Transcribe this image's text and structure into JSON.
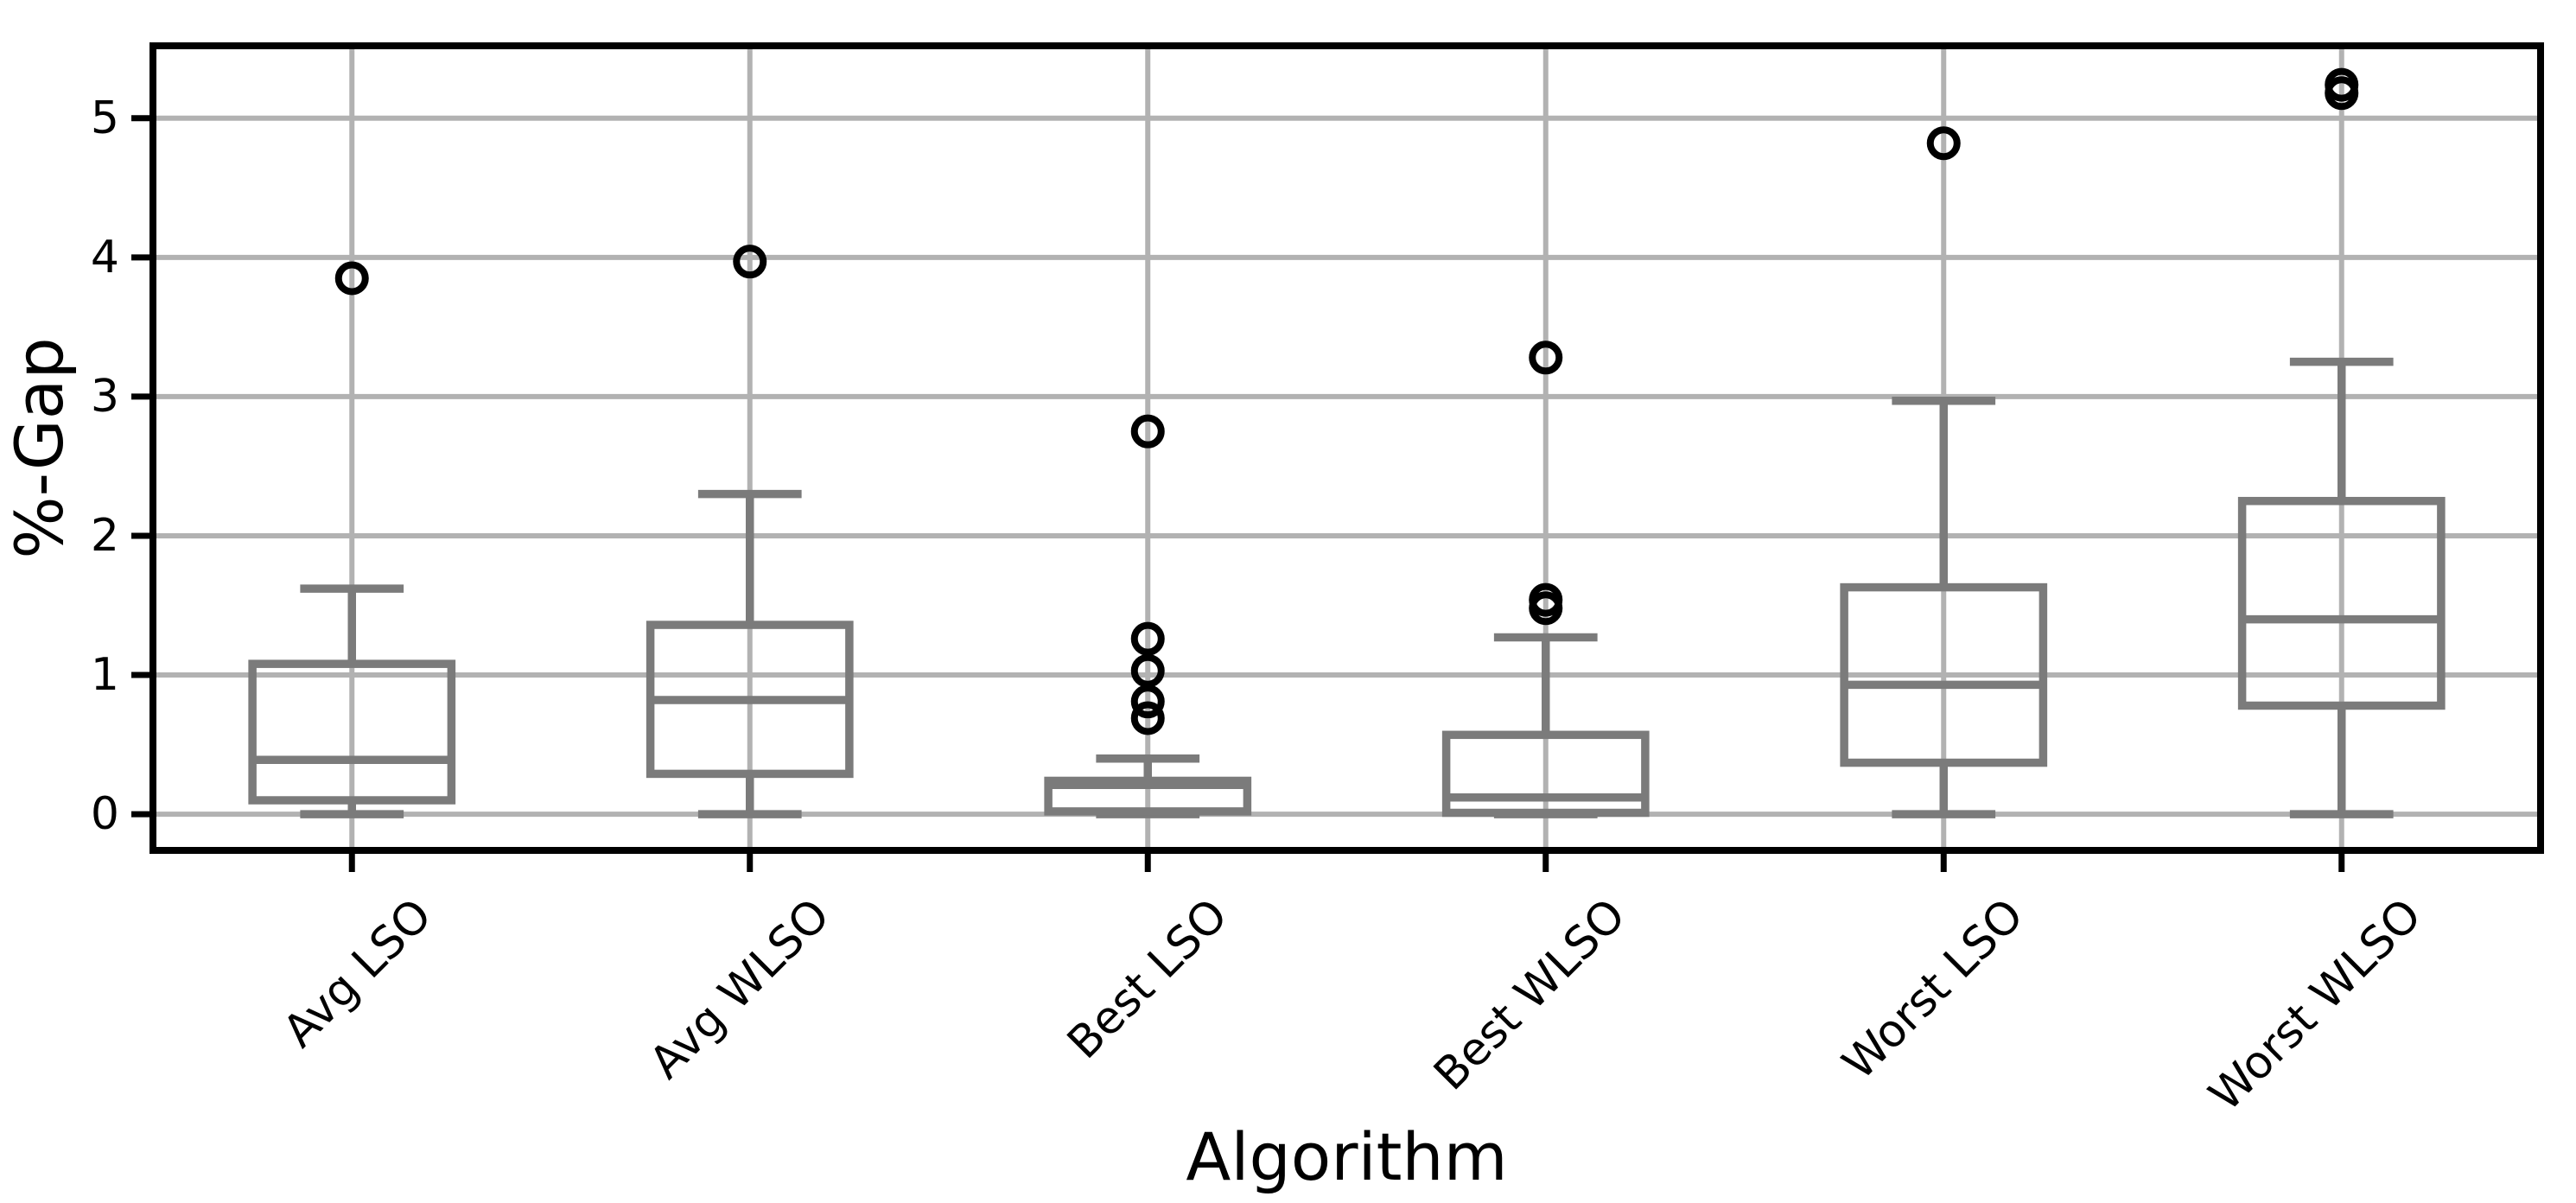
{
  "figure": {
    "description": "Box plot of percentage gap per algorithm variant",
    "background": "#ffffff"
  },
  "chart_data": {
    "type": "box",
    "title": "",
    "xlabel": "Algorithm",
    "ylabel": "%-Gap",
    "categories": [
      "Avg LSO",
      "Avg WLSO",
      "Best LSO",
      "Best WLSO",
      "Worst LSO",
      "Worst WLSO"
    ],
    "yticks": [
      0,
      1,
      2,
      3,
      4,
      5
    ],
    "ytick_labels": [
      "0",
      "1",
      "2",
      "3",
      "4",
      "5"
    ],
    "ylim": [
      -0.26,
      5.52
    ],
    "xlim": [
      0.5,
      6.5
    ],
    "grid": true,
    "legend": "none",
    "x_tick_rotation_deg": 45,
    "series": [
      {
        "name": "Avg LSO",
        "position": 1,
        "whislo": 0.0,
        "q1": 0.1,
        "med": 0.39,
        "q3": 1.08,
        "whishi": 1.62,
        "fliers": [
          3.85
        ]
      },
      {
        "name": "Avg WLSO",
        "position": 2,
        "whislo": 0.0,
        "q1": 0.29,
        "med": 0.82,
        "q3": 1.36,
        "whishi": 2.3,
        "fliers": [
          3.97
        ]
      },
      {
        "name": "Best LSO",
        "position": 3,
        "whislo": 0.0,
        "q1": 0.02,
        "med": 0.21,
        "q3": 0.24,
        "whishi": 0.4,
        "fliers": [
          0.69,
          0.81,
          1.03,
          1.26,
          2.75
        ]
      },
      {
        "name": "Best WLSO",
        "position": 4,
        "whislo": 0.0,
        "q1": 0.01,
        "med": 0.12,
        "q3": 0.57,
        "whishi": 1.27,
        "fliers": [
          1.48,
          1.54,
          3.28
        ]
      },
      {
        "name": "Worst LSO",
        "position": 5,
        "whislo": 0.0,
        "q1": 0.37,
        "med": 0.93,
        "q3": 1.63,
        "whishi": 2.97,
        "fliers": [
          4.82
        ]
      },
      {
        "name": "Worst WLSO",
        "position": 6,
        "whislo": 0.0,
        "q1": 0.78,
        "med": 1.4,
        "q3": 2.25,
        "whishi": 3.25,
        "fliers": [
          5.18,
          5.24
        ]
      }
    ],
    "box_width_data_units": 0.5,
    "cap_width_data_units": 0.26,
    "colors": {
      "box": "#7b7b7b",
      "median": "#7b7b7b",
      "whisker": "#7b7b7b",
      "grid": "#b2b2b2",
      "spine": "#000000",
      "flier_edge": "#000000",
      "background": "#ffffff"
    }
  }
}
